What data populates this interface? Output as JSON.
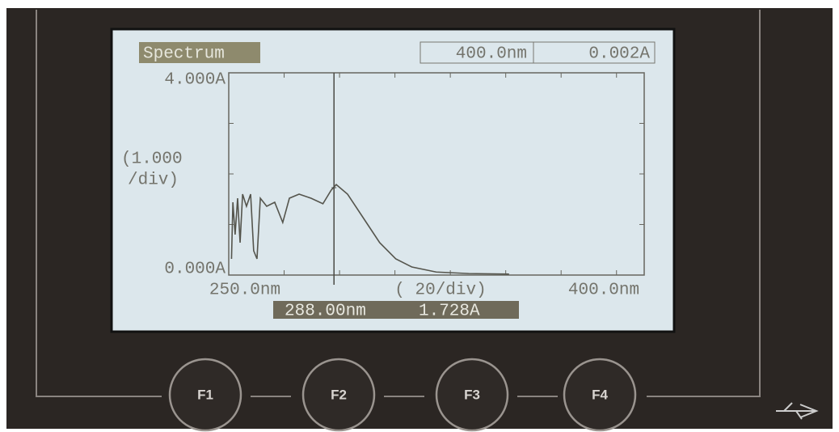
{
  "screen": {
    "title": "Spectrum",
    "header_wavelength": "400.0nm",
    "header_absorbance": "0.002A"
  },
  "chart_data": {
    "type": "line",
    "x": [
      251,
      251.5,
      252.3,
      253.2,
      254.1,
      255,
      256.4,
      257.9,
      259,
      260.2,
      261.4,
      263.7,
      266.6,
      269.5,
      271.9,
      275.4,
      279.7,
      284,
      287,
      288.8,
      292.9,
      298.7,
      304.5,
      310.3,
      316.1,
      324.9,
      336.6,
      351.2
    ],
    "series": [
      {
        "color": "#55554d",
        "values": [
          0.32,
          1.44,
          0.8,
          1.52,
          0.64,
          1.6,
          1.36,
          1.6,
          0.48,
          0.32,
          1.52,
          1.36,
          1.44,
          1.04,
          1.52,
          1.6,
          1.52,
          1.41,
          1.68,
          1.79,
          1.6,
          1.12,
          0.64,
          0.32,
          0.16,
          0.06,
          0.03,
          0.02
        ]
      }
    ],
    "xlim": [
      250,
      400
    ],
    "ylim": [
      0,
      4
    ],
    "xticks": [
      {
        "value": 250,
        "label": "250.0nm"
      },
      {
        "value": 400,
        "label": "400.0nm"
      }
    ],
    "yticks": [
      {
        "value": 0,
        "label": "0.000A"
      },
      {
        "value": 4,
        "label": "4.000A"
      }
    ],
    "y_scale_label": [
      "(1.000",
      "/div)"
    ],
    "x_scale_label": "( 20/div)",
    "cursor": {
      "x": {
        "value": 288,
        "label": "288.00nm"
      },
      "y": {
        "value": 1.728,
        "label": "1.728A"
      }
    }
  },
  "buttons": [
    "F1",
    "F2",
    "F3",
    "F4"
  ]
}
